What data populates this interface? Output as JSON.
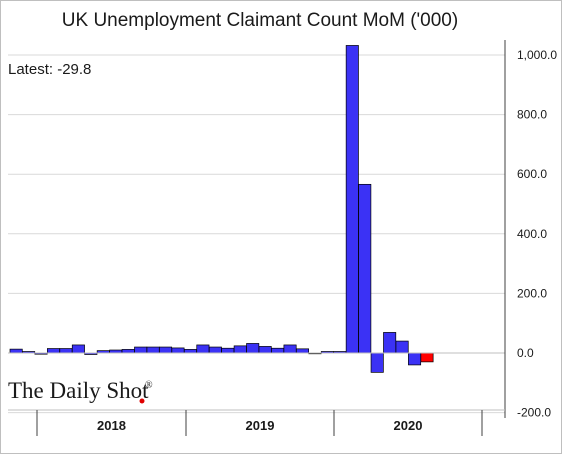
{
  "chart_data": {
    "type": "bar",
    "title": "UK Unemployment Claimant Count MoM ('000)",
    "annotation": "Latest:  -29.8",
    "xlabel": "",
    "ylabel": "",
    "ylim": [
      -200,
      1100
    ],
    "yticks": [
      -200,
      0,
      200,
      400,
      600,
      800,
      1000
    ],
    "ytick_labels": [
      "-200.0",
      "0.0",
      "200.0",
      "400.0",
      "600.0",
      "800.0",
      "1,000.0"
    ],
    "grid": true,
    "legend": "none",
    "x_groups": [
      "2018",
      "2019",
      "2020"
    ],
    "x": [
      "Jan 2018",
      "Feb 2018",
      "Mar 2018",
      "Apr 2018",
      "May 2018",
      "Jun 2018",
      "Jul 2018",
      "Aug 2018",
      "Sep 2018",
      "Oct 2018",
      "Nov 2018",
      "Dec 2018",
      "Jan 2019",
      "Feb 2019",
      "Mar 2019",
      "Apr 2019",
      "May 2019",
      "Jun 2019",
      "Jul 2019",
      "Aug 2019",
      "Sep 2019",
      "Oct 2019",
      "Nov 2019",
      "Dec 2019",
      "Jan 2020",
      "Feb 2020",
      "Mar 2020",
      "Apr 2020",
      "May 2020",
      "Jun 2020",
      "Jul 2020",
      "Aug 2020",
      "Sep 2020",
      "Oct 2020"
    ],
    "values": [
      13,
      5,
      -4,
      15,
      15,
      27,
      -5,
      8,
      10,
      12,
      20,
      20,
      20,
      17,
      12,
      27,
      20,
      16,
      24,
      32,
      22,
      16,
      27,
      14,
      -1,
      5,
      5,
      1032,
      566,
      -65,
      69,
      40,
      -40,
      -29.8
    ],
    "colors": {
      "bar": "#3b32f5",
      "latest_bar": "#ff0000",
      "bar_edge": "#000000",
      "grid": "#d9d9d9"
    },
    "highlight_last": true
  },
  "brand": {
    "name": "The Daily Shot",
    "mark": "®"
  }
}
